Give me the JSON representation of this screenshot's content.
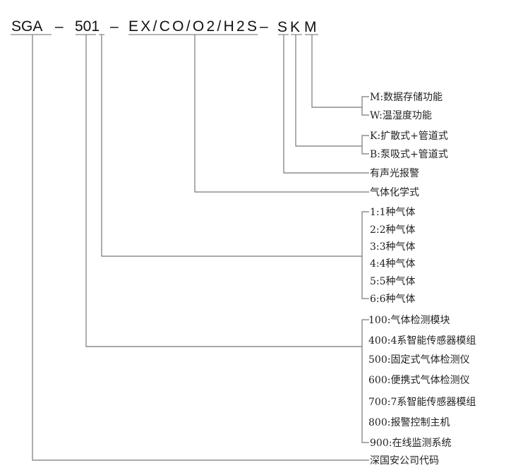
{
  "model_code": {
    "parts": [
      "SGA",
      "501",
      "EX/CO/O2/H2S",
      "S",
      "K",
      "M"
    ],
    "separator": "–"
  },
  "legend": {
    "function_options": [
      "M:数据存储功能",
      "W:温湿度功能"
    ],
    "sampling_options": [
      "K:扩散式+管道式",
      "B:泵吸式+管道式"
    ],
    "alarm": "有声光报警",
    "gas_formula": "气体化学式",
    "gas_count_options": [
      "1:1种气体",
      "2:2种气体",
      "3:3种气体",
      "4:4种气体",
      "5:5种气体",
      "6:6种气体"
    ],
    "series_options": [
      "100:气体检测模块",
      "400:4系智能传感器模组",
      "500:固定式气体检测仪",
      "600:便携式气体检测仪",
      "700:7系智能传感器模组",
      "800:报警控制主机",
      "900:在线监测系统"
    ],
    "company_code": "深国安公司代码"
  }
}
